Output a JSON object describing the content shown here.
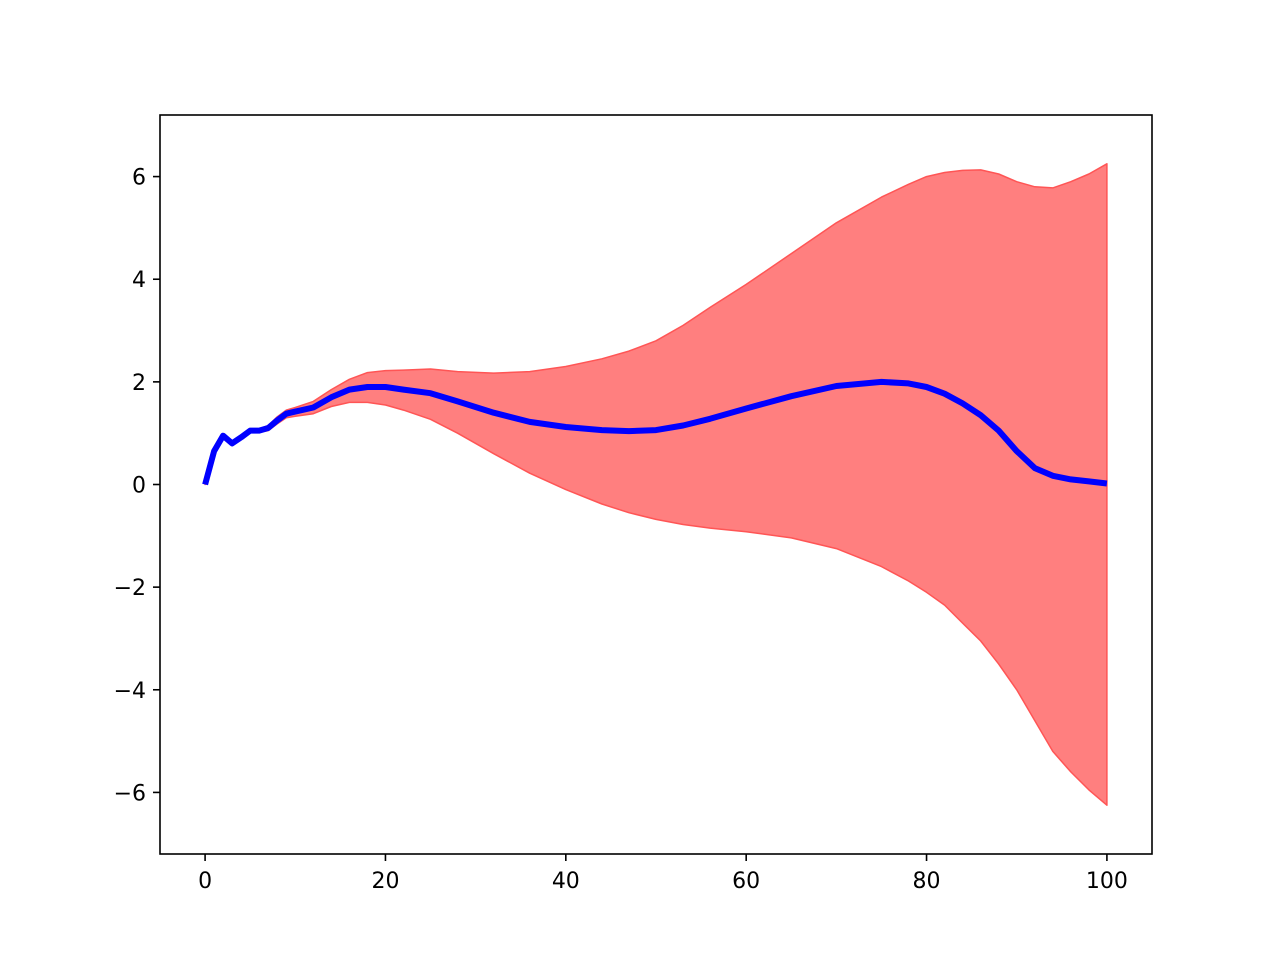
{
  "chart_data": {
    "type": "area",
    "title": "",
    "xlabel": "",
    "ylabel": "",
    "xlim": [
      -5,
      105
    ],
    "ylim": [
      -7.2,
      7.2
    ],
    "grid": false,
    "legend": null,
    "x_ticks": [
      0,
      20,
      40,
      60,
      80,
      100
    ],
    "y_ticks": [
      -6,
      -4,
      -2,
      0,
      2,
      4,
      6
    ],
    "x_tick_labels": [
      "0",
      "20",
      "40",
      "60",
      "80",
      "100"
    ],
    "y_tick_labels": [
      "−6",
      "−4",
      "−2",
      "0",
      "2",
      "4",
      "6"
    ],
    "colors": {
      "line": "#0000ff",
      "band_fill": "#ff7f7f",
      "band_edge": "#ff5555",
      "axes": "#000000"
    },
    "x": [
      0,
      1,
      2,
      3,
      4,
      5,
      6,
      7,
      8,
      9,
      10,
      12,
      14,
      16,
      18,
      20,
      22,
      25,
      28,
      32,
      36,
      40,
      44,
      47,
      50,
      53,
      56,
      60,
      65,
      70,
      75,
      78,
      80,
      82,
      84,
      86,
      88,
      90,
      92,
      94,
      96,
      98,
      100
    ],
    "series": [
      {
        "role": "mean",
        "values": [
          0.0,
          0.65,
          0.95,
          0.8,
          0.92,
          1.05,
          1.05,
          1.1,
          1.25,
          1.38,
          1.42,
          1.5,
          1.7,
          1.85,
          1.9,
          1.9,
          1.85,
          1.78,
          1.62,
          1.4,
          1.22,
          1.12,
          1.06,
          1.04,
          1.06,
          1.15,
          1.28,
          1.48,
          1.72,
          1.92,
          2.0,
          1.97,
          1.9,
          1.77,
          1.58,
          1.35,
          1.05,
          0.65,
          0.32,
          0.17,
          0.1,
          0.06,
          0.02
        ]
      },
      {
        "role": "upper",
        "values": [
          0.0,
          0.65,
          0.95,
          0.8,
          0.93,
          1.07,
          1.08,
          1.15,
          1.32,
          1.45,
          1.5,
          1.62,
          1.85,
          2.05,
          2.18,
          2.22,
          2.23,
          2.25,
          2.2,
          2.17,
          2.2,
          2.3,
          2.45,
          2.6,
          2.8,
          3.1,
          3.45,
          3.9,
          4.5,
          5.1,
          5.6,
          5.85,
          6.0,
          6.08,
          6.12,
          6.13,
          6.05,
          5.9,
          5.8,
          5.78,
          5.9,
          6.05,
          6.25
        ]
      },
      {
        "role": "lower",
        "values": [
          0.0,
          0.65,
          0.95,
          0.8,
          0.91,
          1.03,
          1.02,
          1.05,
          1.18,
          1.3,
          1.33,
          1.38,
          1.52,
          1.6,
          1.6,
          1.55,
          1.45,
          1.27,
          1.0,
          0.6,
          0.22,
          -0.1,
          -0.38,
          -0.55,
          -0.68,
          -0.78,
          -0.85,
          -0.92,
          -1.04,
          -1.25,
          -1.6,
          -1.88,
          -2.1,
          -2.35,
          -2.7,
          -3.05,
          -3.5,
          -4.0,
          -4.6,
          -5.2,
          -5.6,
          -5.95,
          -6.25
        ]
      }
    ]
  }
}
